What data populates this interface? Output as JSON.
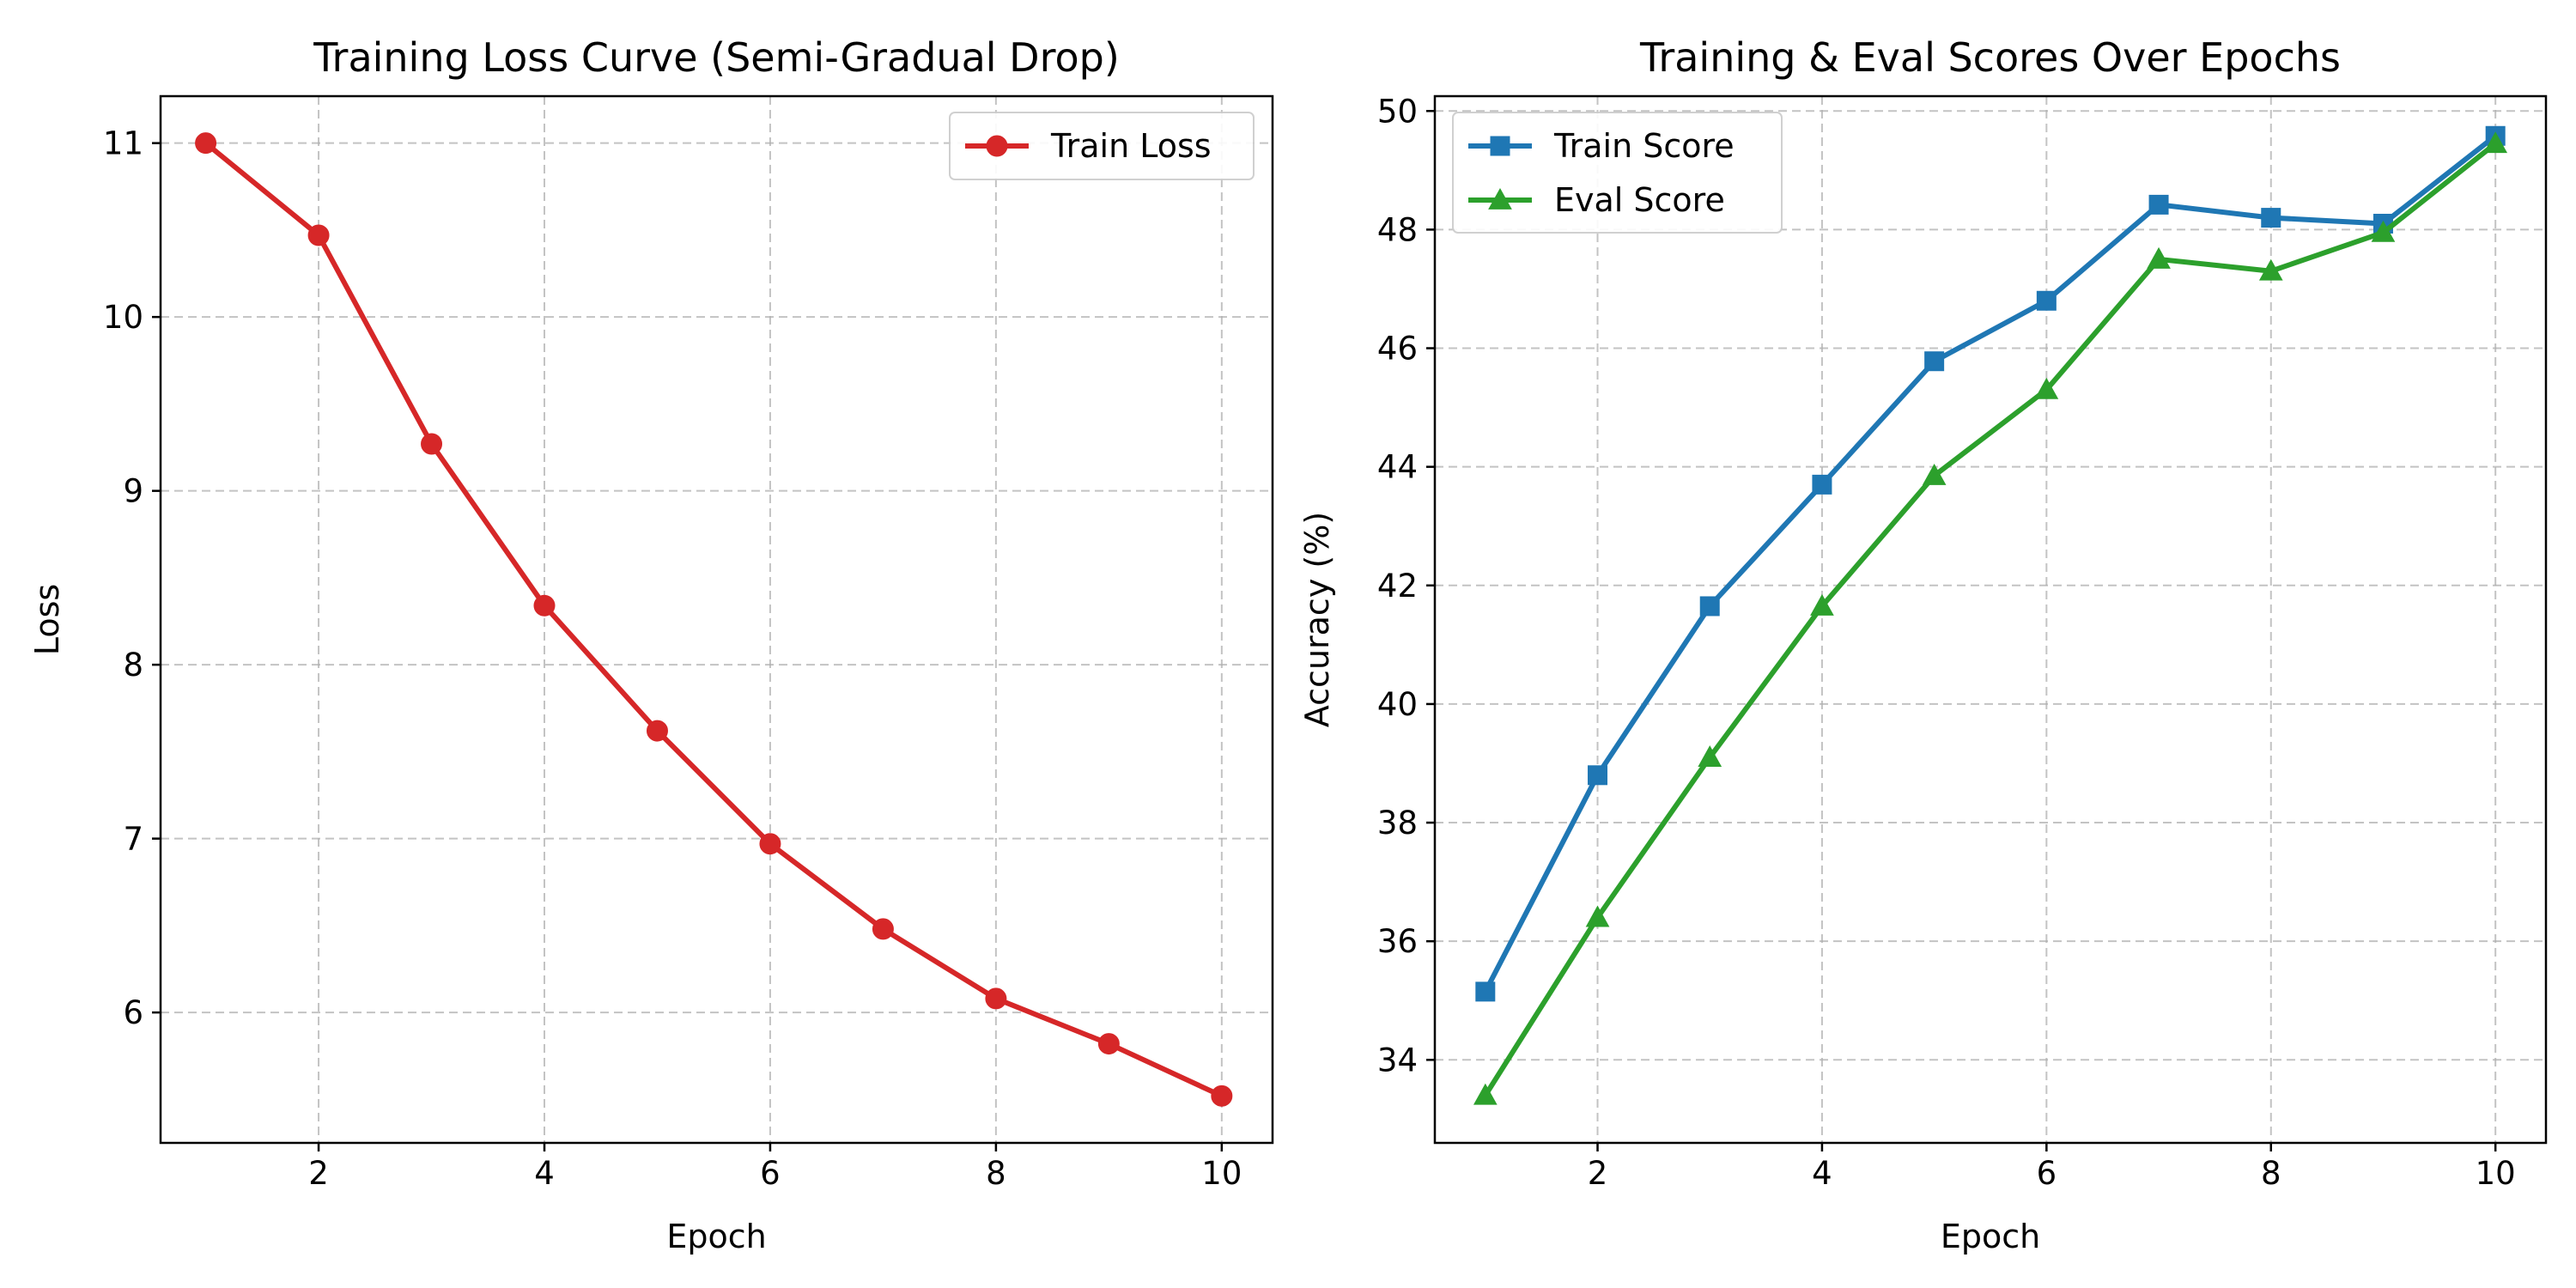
{
  "chart_data": [
    {
      "type": "line",
      "title": "Training Loss Curve (Semi-Gradual Drop)",
      "xlabel": "Epoch",
      "ylabel": "Loss",
      "xlim": [
        0.6,
        10.45
      ],
      "ylim": [
        5.25,
        11.27
      ],
      "xticks": [
        2,
        4,
        6,
        8,
        10
      ],
      "yticks": [
        6,
        7,
        8,
        9,
        10,
        11
      ],
      "grid": true,
      "legend_position": "top-right",
      "x": [
        1,
        2,
        3,
        4,
        5,
        6,
        7,
        8,
        9,
        10
      ],
      "series": [
        {
          "name": "Train Loss",
          "color": "#d62728",
          "marker": "circle",
          "values": [
            11.0,
            10.47,
            9.27,
            8.34,
            7.62,
            6.97,
            6.48,
            6.08,
            5.82,
            5.52
          ]
        }
      ]
    },
    {
      "type": "line",
      "title": "Training & Eval Scores Over Epochs",
      "xlabel": "Epoch",
      "ylabel": "Accuracy (%)",
      "xlim": [
        0.55,
        10.45
      ],
      "ylim": [
        32.6,
        50.25
      ],
      "xticks": [
        2,
        4,
        6,
        8,
        10
      ],
      "yticks": [
        34,
        36,
        38,
        40,
        42,
        44,
        46,
        48,
        50
      ],
      "grid": true,
      "legend_position": "top-left",
      "x": [
        1,
        2,
        3,
        4,
        5,
        6,
        7,
        8,
        9,
        10
      ],
      "series": [
        {
          "name": "Train Score",
          "color": "#1f77b4",
          "marker": "square",
          "values": [
            35.15,
            38.8,
            41.65,
            43.7,
            45.78,
            46.8,
            48.42,
            48.2,
            48.1,
            49.58
          ]
        },
        {
          "name": "Eval Score",
          "color": "#2ca02c",
          "marker": "triangle",
          "values": [
            33.4,
            36.4,
            39.1,
            41.65,
            43.85,
            45.3,
            47.5,
            47.3,
            47.95,
            49.45
          ]
        }
      ]
    }
  ]
}
